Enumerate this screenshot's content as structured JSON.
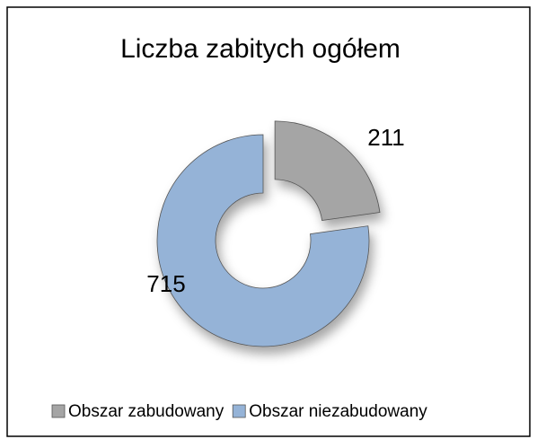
{
  "chart_data": {
    "type": "donut",
    "title": "Liczba zabitych ogółem",
    "categories": [
      "Obszar zabudowany",
      "Obszar niezabudowany"
    ],
    "values": [
      211,
      715
    ],
    "colors": [
      "#a5a5a5",
      "#95b3d7"
    ],
    "legend": "bottom"
  }
}
